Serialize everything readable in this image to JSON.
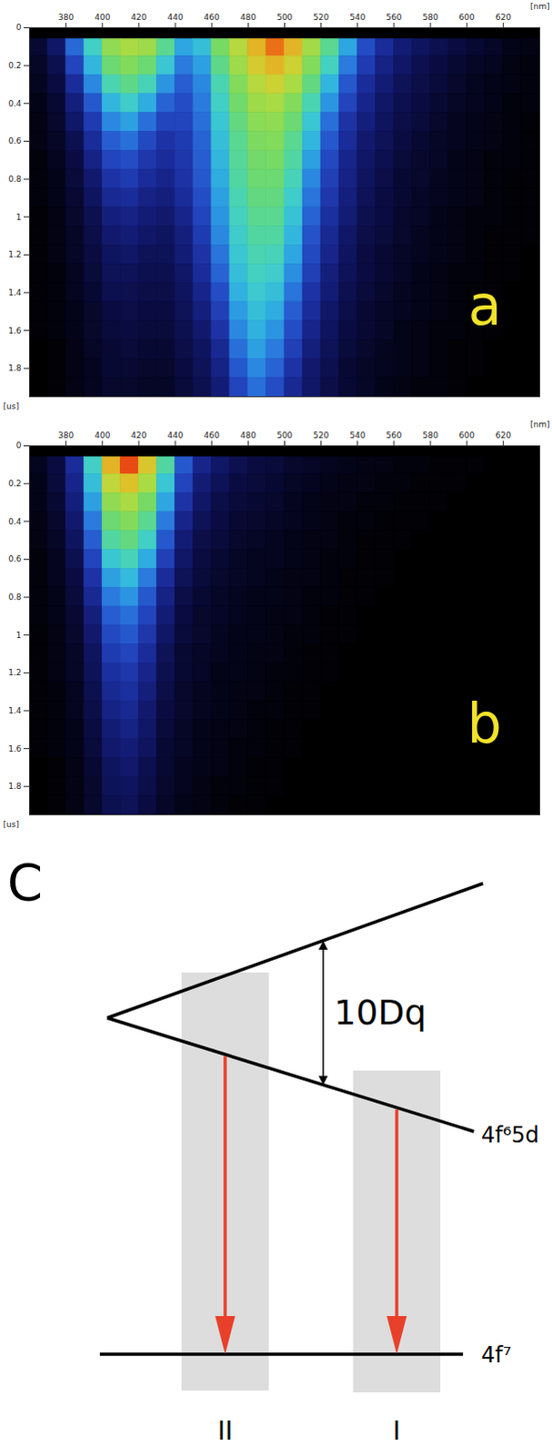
{
  "chart_data": [
    {
      "type": "heatmap",
      "annotations": [
        "a"
      ],
      "xlabel": "[nm]",
      "ylabel": "[us]",
      "xlim": [
        360,
        640
      ],
      "xticks": [
        380,
        400,
        420,
        440,
        460,
        480,
        500,
        520,
        540,
        560,
        580,
        600,
        620
      ],
      "ylim": [
        0,
        1.95
      ],
      "yticks": [
        0,
        0.2,
        0.4,
        0.6,
        0.8,
        1,
        1.2,
        1.4,
        1.6,
        1.8
      ],
      "zlim": [
        0,
        100
      ],
      "wavelength_bins": [
        360,
        370,
        380,
        390,
        400,
        410,
        420,
        430,
        440,
        450,
        460,
        470,
        480,
        490,
        500,
        510,
        520,
        530,
        540,
        550,
        560,
        570,
        580,
        590,
        600,
        610,
        620,
        630,
        640
      ],
      "time_bins": [
        0,
        0.06,
        0.15,
        0.25,
        0.35,
        0.45,
        0.55,
        0.65,
        0.75,
        0.85,
        0.95,
        1.05,
        1.15,
        1.25,
        1.35,
        1.45,
        1.55,
        1.65,
        1.75,
        1.85,
        1.95
      ],
      "intensity": [
        [
          0,
          0,
          0,
          0,
          0,
          0,
          0,
          0,
          0,
          0,
          0,
          0,
          0,
          0,
          0,
          0,
          0,
          0,
          0,
          0,
          0,
          0,
          0,
          0,
          0,
          0,
          0,
          0
        ],
        [
          8,
          15,
          35,
          55,
          72,
          76,
          74,
          62,
          45,
          50,
          68,
          78,
          88,
          95,
          88,
          75,
          62,
          45,
          30,
          22,
          17,
          14,
          12,
          10,
          8,
          6,
          4,
          3
        ],
        [
          6,
          12,
          28,
          48,
          66,
          70,
          66,
          52,
          38,
          44,
          63,
          74,
          84,
          88,
          82,
          70,
          56,
          38,
          26,
          19,
          15,
          12,
          10,
          8,
          6,
          5,
          3,
          2
        ],
        [
          5,
          10,
          22,
          40,
          58,
          63,
          57,
          42,
          33,
          40,
          58,
          70,
          78,
          82,
          76,
          64,
          48,
          32,
          22,
          17,
          13,
          11,
          9,
          7,
          5,
          4,
          3,
          2
        ],
        [
          4,
          8,
          18,
          32,
          48,
          54,
          46,
          34,
          30,
          38,
          55,
          67,
          74,
          76,
          70,
          58,
          42,
          28,
          20,
          15,
          12,
          10,
          8,
          6,
          5,
          4,
          2,
          2
        ],
        [
          3,
          7,
          15,
          26,
          40,
          44,
          36,
          28,
          28,
          36,
          52,
          64,
          71,
          72,
          66,
          52,
          36,
          24,
          18,
          14,
          11,
          9,
          7,
          5,
          4,
          3,
          2,
          1
        ],
        [
          3,
          6,
          12,
          22,
          33,
          36,
          29,
          24,
          26,
          34,
          50,
          62,
          69,
          70,
          62,
          48,
          32,
          22,
          16,
          13,
          10,
          8,
          6,
          5,
          4,
          3,
          2,
          1
        ],
        [
          2,
          5,
          10,
          19,
          28,
          30,
          25,
          22,
          25,
          33,
          48,
          61,
          67,
          68,
          60,
          44,
          29,
          20,
          15,
          12,
          9,
          7,
          6,
          4,
          3,
          2,
          2,
          1
        ],
        [
          2,
          4,
          9,
          16,
          24,
          26,
          22,
          20,
          24,
          32,
          46,
          60,
          66,
          66,
          57,
          40,
          27,
          19,
          14,
          11,
          8,
          7,
          5,
          4,
          3,
          2,
          1,
          1
        ],
        [
          2,
          4,
          8,
          14,
          21,
          22,
          19,
          18,
          22,
          30,
          44,
          58,
          64,
          64,
          54,
          37,
          25,
          18,
          13,
          10,
          8,
          6,
          5,
          4,
          3,
          2,
          1,
          1
        ],
        [
          1,
          3,
          7,
          12,
          18,
          19,
          17,
          16,
          20,
          28,
          42,
          56,
          62,
          62,
          51,
          34,
          23,
          17,
          12,
          10,
          7,
          6,
          4,
          3,
          2,
          2,
          1,
          1
        ],
        [
          1,
          3,
          6,
          11,
          16,
          17,
          15,
          14,
          18,
          26,
          40,
          54,
          60,
          60,
          48,
          31,
          21,
          15,
          11,
          9,
          7,
          5,
          4,
          3,
          2,
          1,
          1,
          1
        ],
        [
          1,
          3,
          6,
          10,
          14,
          15,
          13,
          13,
          17,
          24,
          37,
          52,
          58,
          57,
          45,
          29,
          20,
          14,
          10,
          8,
          6,
          5,
          4,
          3,
          2,
          1,
          1,
          0
        ],
        [
          1,
          2,
          5,
          9,
          13,
          13,
          12,
          12,
          15,
          22,
          34,
          50,
          56,
          54,
          41,
          27,
          18,
          13,
          10,
          8,
          6,
          4,
          3,
          2,
          2,
          1,
          1,
          0
        ],
        [
          1,
          2,
          5,
          8,
          12,
          12,
          11,
          11,
          14,
          20,
          30,
          47,
          53,
          50,
          37,
          24,
          17,
          12,
          9,
          7,
          5,
          4,
          3,
          2,
          1,
          1,
          0,
          0
        ],
        [
          1,
          2,
          4,
          7,
          10,
          11,
          10,
          10,
          13,
          18,
          27,
          43,
          50,
          46,
          33,
          22,
          15,
          11,
          8,
          6,
          5,
          4,
          3,
          2,
          1,
          1,
          0,
          0
        ],
        [
          1,
          2,
          4,
          7,
          9,
          10,
          9,
          9,
          12,
          16,
          24,
          40,
          47,
          42,
          30,
          20,
          14,
          10,
          8,
          6,
          4,
          3,
          2,
          2,
          1,
          1,
          0,
          0
        ],
        [
          0,
          1,
          3,
          6,
          8,
          9,
          8,
          8,
          11,
          14,
          21,
          36,
          44,
          38,
          27,
          18,
          13,
          9,
          7,
          5,
          4,
          3,
          2,
          1,
          1,
          0,
          0,
          0
        ],
        [
          0,
          1,
          3,
          5,
          8,
          8,
          7,
          7,
          10,
          13,
          19,
          32,
          40,
          34,
          24,
          16,
          12,
          8,
          6,
          5,
          4,
          3,
          2,
          1,
          1,
          0,
          0,
          0
        ],
        [
          0,
          1,
          3,
          5,
          7,
          7,
          6,
          6,
          9,
          12,
          17,
          28,
          36,
          30,
          21,
          15,
          11,
          8,
          6,
          4,
          3,
          2,
          2,
          1,
          0,
          0,
          0,
          0
        ]
      ]
    },
    {
      "type": "heatmap",
      "annotations": [
        "b"
      ],
      "xlabel": "[nm]",
      "ylabel": "[us]",
      "xlim": [
        360,
        640
      ],
      "xticks": [
        380,
        400,
        420,
        440,
        460,
        480,
        500,
        520,
        540,
        560,
        580,
        600,
        620
      ],
      "ylim": [
        0,
        1.95
      ],
      "yticks": [
        0,
        0.2,
        0.4,
        0.6,
        0.8,
        1,
        1.2,
        1.4,
        1.6,
        1.8
      ],
      "zlim": [
        0,
        100
      ],
      "wavelength_bins": [
        360,
        370,
        380,
        390,
        400,
        410,
        420,
        430,
        440,
        450,
        460,
        470,
        480,
        490,
        500,
        510,
        520,
        530,
        540,
        550,
        560,
        570,
        580,
        590,
        600,
        610,
        620,
        630,
        640
      ],
      "time_bins": [
        0,
        0.06,
        0.15,
        0.25,
        0.35,
        0.45,
        0.55,
        0.65,
        0.75,
        0.85,
        0.95,
        1.05,
        1.15,
        1.25,
        1.35,
        1.45,
        1.55,
        1.65,
        1.75,
        1.85,
        1.95
      ],
      "intensity": [
        [
          0,
          0,
          0,
          0,
          0,
          0,
          0,
          0,
          0,
          0,
          0,
          0,
          0,
          0,
          0,
          0,
          0,
          0,
          0,
          0,
          0,
          0,
          0,
          0,
          0,
          0,
          0,
          0
        ],
        [
          5,
          10,
          22,
          55,
          88,
          98,
          85,
          60,
          32,
          20,
          15,
          12,
          10,
          9,
          7,
          6,
          5,
          4,
          3,
          3,
          2,
          2,
          1,
          1,
          1,
          0,
          0,
          0
        ],
        [
          4,
          9,
          20,
          50,
          80,
          86,
          76,
          52,
          28,
          17,
          13,
          10,
          9,
          8,
          6,
          5,
          4,
          3,
          3,
          2,
          2,
          1,
          1,
          1,
          0,
          0,
          0,
          0
        ],
        [
          4,
          8,
          18,
          44,
          72,
          76,
          68,
          45,
          24,
          15,
          11,
          9,
          8,
          7,
          5,
          4,
          3,
          3,
          2,
          2,
          1,
          1,
          1,
          0,
          0,
          0,
          0,
          0
        ],
        [
          3,
          7,
          16,
          38,
          66,
          70,
          62,
          38,
          20,
          13,
          10,
          8,
          7,
          6,
          5,
          4,
          3,
          2,
          2,
          1,
          1,
          1,
          0,
          0,
          0,
          0,
          0,
          0
        ],
        [
          3,
          6,
          14,
          33,
          60,
          64,
          55,
          32,
          17,
          11,
          9,
          7,
          6,
          5,
          4,
          3,
          3,
          2,
          1,
          1,
          1,
          0,
          0,
          0,
          0,
          0,
          0,
          0
        ],
        [
          2,
          5,
          12,
          28,
          52,
          57,
          46,
          27,
          15,
          10,
          8,
          6,
          5,
          5,
          4,
          3,
          2,
          2,
          1,
          1,
          0,
          0,
          0,
          0,
          0,
          0,
          0,
          0
        ],
        [
          2,
          5,
          10,
          24,
          44,
          49,
          38,
          22,
          13,
          9,
          7,
          6,
          5,
          4,
          3,
          3,
          2,
          1,
          1,
          1,
          0,
          0,
          0,
          0,
          0,
          0,
          0,
          0
        ],
        [
          2,
          4,
          9,
          21,
          38,
          42,
          32,
          19,
          11,
          8,
          6,
          5,
          4,
          4,
          3,
          2,
          2,
          1,
          1,
          0,
          0,
          0,
          0,
          0,
          0,
          0,
          0,
          0
        ],
        [
          2,
          4,
          8,
          18,
          33,
          36,
          28,
          17,
          10,
          7,
          6,
          5,
          4,
          3,
          3,
          2,
          1,
          1,
          0,
          0,
          0,
          0,
          0,
          0,
          0,
          0,
          0,
          0
        ],
        [
          1,
          3,
          7,
          16,
          29,
          32,
          25,
          15,
          9,
          7,
          5,
          4,
          4,
          3,
          2,
          2,
          1,
          1,
          0,
          0,
          0,
          0,
          0,
          0,
          0,
          0,
          0,
          0
        ],
        [
          1,
          3,
          6,
          14,
          26,
          28,
          22,
          13,
          8,
          6,
          5,
          4,
          3,
          3,
          2,
          1,
          1,
          0,
          0,
          0,
          0,
          0,
          0,
          0,
          0,
          0,
          0,
          0
        ],
        [
          1,
          3,
          6,
          13,
          23,
          25,
          20,
          12,
          8,
          6,
          4,
          4,
          3,
          2,
          2,
          1,
          1,
          0,
          0,
          0,
          0,
          0,
          0,
          0,
          0,
          0,
          0,
          0
        ],
        [
          1,
          2,
          5,
          12,
          21,
          23,
          18,
          11,
          7,
          5,
          4,
          3,
          3,
          2,
          1,
          1,
          0,
          0,
          0,
          0,
          0,
          0,
          0,
          0,
          0,
          0,
          0,
          0
        ],
        [
          1,
          2,
          5,
          11,
          19,
          21,
          16,
          10,
          7,
          5,
          4,
          3,
          2,
          2,
          1,
          1,
          0,
          0,
          0,
          0,
          0,
          0,
          0,
          0,
          0,
          0,
          0,
          0
        ],
        [
          1,
          2,
          4,
          10,
          17,
          19,
          15,
          9,
          6,
          4,
          3,
          3,
          2,
          1,
          1,
          0,
          0,
          0,
          0,
          0,
          0,
          0,
          0,
          0,
          0,
          0,
          0,
          0
        ],
        [
          1,
          2,
          4,
          9,
          16,
          17,
          14,
          8,
          6,
          4,
          3,
          2,
          2,
          1,
          1,
          0,
          0,
          0,
          0,
          0,
          0,
          0,
          0,
          0,
          0,
          0,
          0,
          0
        ],
        [
          0,
          1,
          3,
          8,
          14,
          16,
          12,
          8,
          5,
          4,
          3,
          2,
          1,
          1,
          0,
          0,
          0,
          0,
          0,
          0,
          0,
          0,
          0,
          0,
          0,
          0,
          0,
          0
        ],
        [
          0,
          1,
          3,
          7,
          13,
          14,
          11,
          7,
          5,
          3,
          2,
          2,
          1,
          1,
          0,
          0,
          0,
          0,
          0,
          0,
          0,
          0,
          0,
          0,
          0,
          0,
          0,
          0
        ],
        [
          0,
          1,
          3,
          7,
          12,
          13,
          10,
          6,
          4,
          3,
          2,
          1,
          1,
          0,
          0,
          0,
          0,
          0,
          0,
          0,
          0,
          0,
          0,
          0,
          0,
          0,
          0,
          0
        ]
      ]
    }
  ],
  "diagram": {
    "label": "C",
    "gap_label": "10Dq",
    "levels": [
      "4f⁶5d",
      "4f⁷"
    ],
    "transitions": [
      "II",
      "I"
    ]
  }
}
